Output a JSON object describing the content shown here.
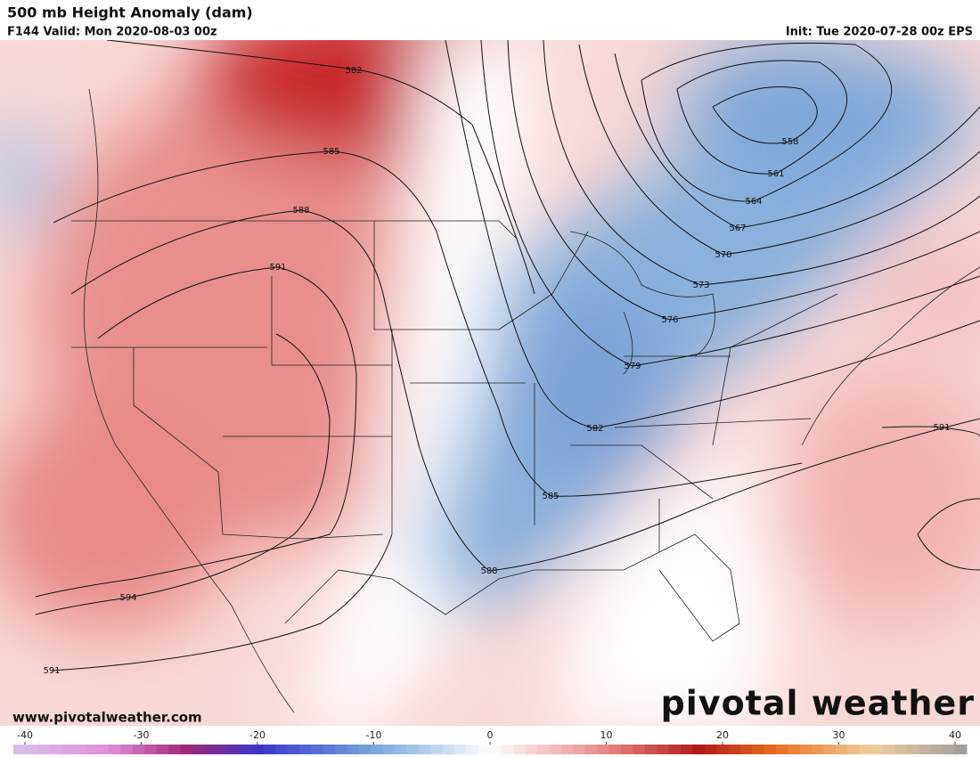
{
  "header": {
    "title": "500 mb Height Anomaly (dam)",
    "valid": "F144 Valid: Mon 2020-08-03 00z",
    "init": "Init: Tue 2020-07-28 00z EPS"
  },
  "contour_labels": [
    "582",
    "585",
    "588",
    "591",
    "558",
    "561",
    "564",
    "567",
    "570",
    "573",
    "576",
    "579",
    "582",
    "585",
    "588",
    "591",
    "594",
    "591"
  ],
  "footer": {
    "website": "www.pivotalweather.com",
    "logo": "pivotal weather"
  },
  "colorbar": {
    "ticks": [
      -40,
      -30,
      -20,
      -10,
      0,
      10,
      20,
      30,
      40
    ]
  }
}
